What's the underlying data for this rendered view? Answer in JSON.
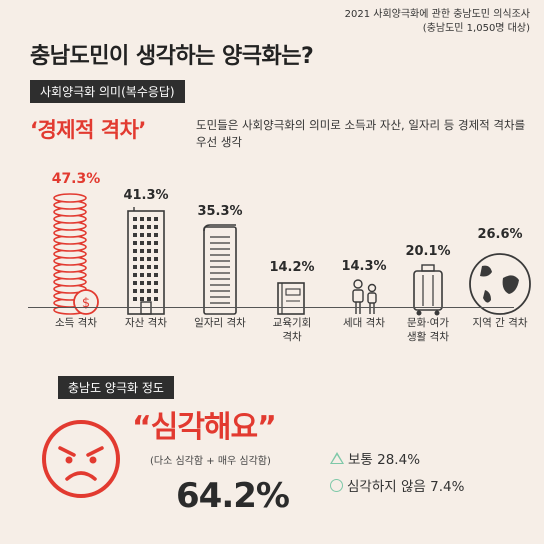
{
  "survey_note": {
    "line1": "2021 사회양극화에 관한 충남도민 의식조사",
    "line2": "(충남도민 1,050명 대상)"
  },
  "title": "충남도민이 생각하는 양극화는?",
  "section1": {
    "label": "사회양극화 의미(복수응답)",
    "headline": "‘경제적 격차’",
    "description": "도민들은 사회양극화의 의미로 소득과 자산, 일자리 등 경제적 격차를 우선 생각"
  },
  "chart_data": {
    "type": "bar",
    "categories": [
      "소득 격차",
      "자산 격차",
      "일자리 격차",
      "교육기회 격차",
      "세대 격차",
      "문화·여가 생활 격차",
      "지역 간 격차"
    ],
    "values": [
      47.3,
      41.3,
      35.3,
      14.2,
      14.3,
      20.1,
      26.6
    ],
    "value_labels": [
      "47.3%",
      "41.3%",
      "35.3%",
      "14.2%",
      "14.3%",
      "20.1%",
      "26.6%"
    ],
    "category_lines": [
      [
        "소득 격차"
      ],
      [
        "자산 격차"
      ],
      [
        "일자리 격차"
      ],
      [
        "교육기회",
        "격차"
      ],
      [
        "세대 격차"
      ],
      [
        "문화·여가",
        "생활 격차"
      ],
      [
        "지역 간 격차"
      ]
    ],
    "icons": [
      "coins-icon",
      "building-icon",
      "document-icon",
      "book-icon",
      "people-icon",
      "luggage-icon",
      "globe-icon"
    ],
    "highlight_index": 0,
    "ylim": [
      0,
      50
    ]
  },
  "section2": {
    "label": "충남도 양극화 정도",
    "quote": "“심각해요”",
    "quote_sub": "(다소 심각함 + 매우 심각함)",
    "main_value": "64.2%",
    "others": [
      {
        "mark": "triangle",
        "text": "보통 28.4%"
      },
      {
        "mark": "circle",
        "text": "심각하지 않음 7.4%"
      }
    ]
  },
  "colors": {
    "accent": "#e23a30",
    "mint": "#7ec8a8",
    "background": "#f6eee7",
    "dark": "#2e2e2e"
  }
}
